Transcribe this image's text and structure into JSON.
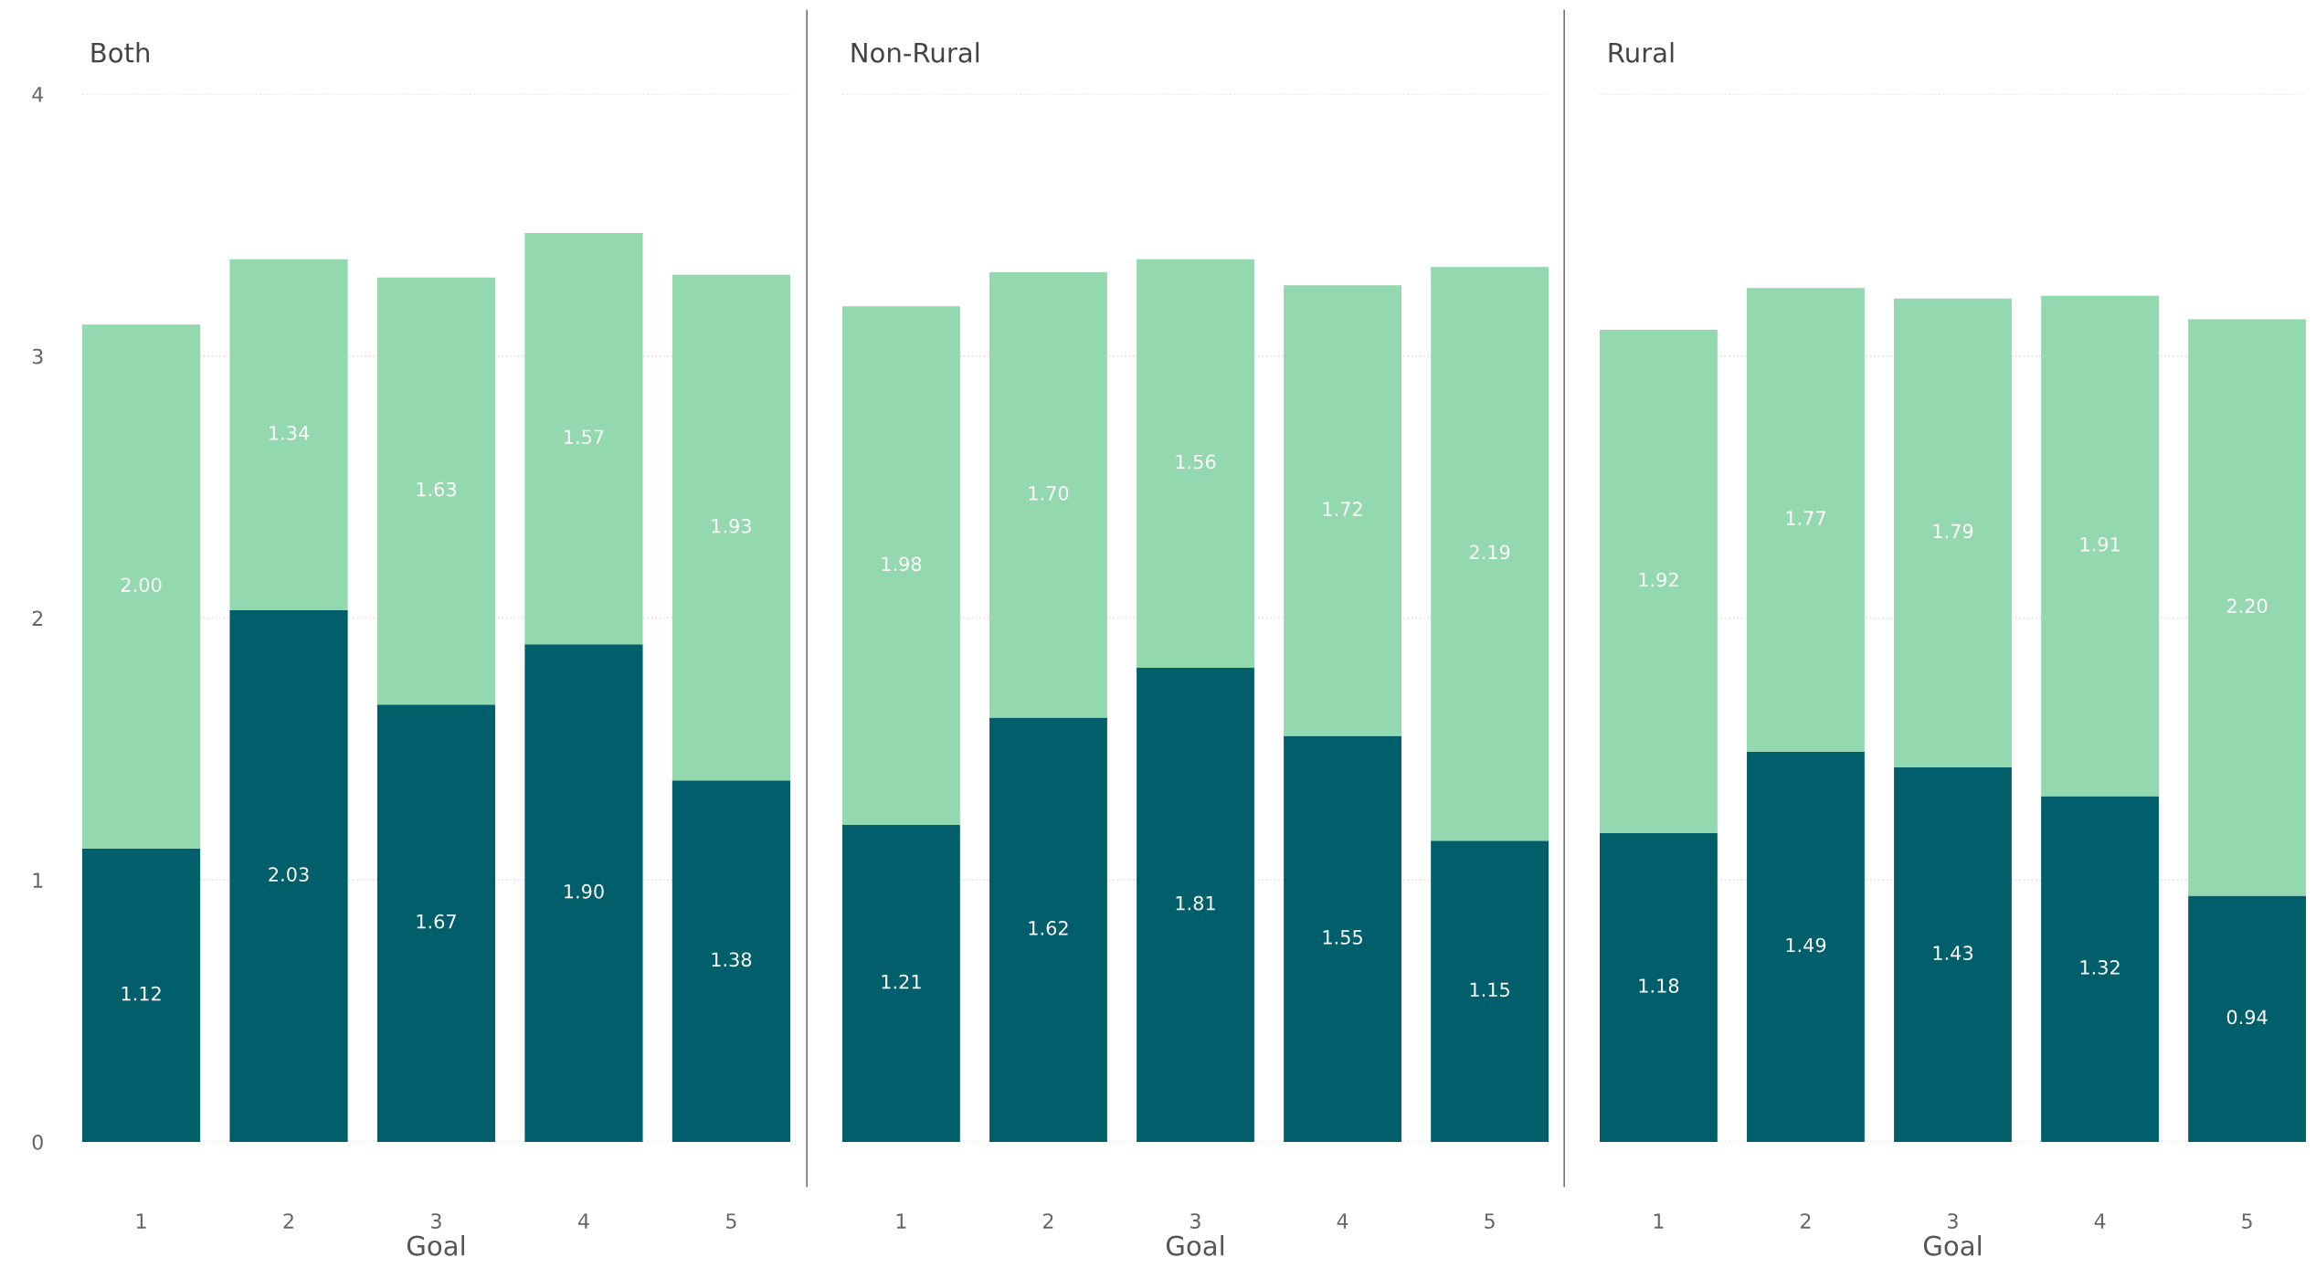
{
  "chart_data": [
    {
      "type": "bar",
      "title": "Both",
      "xlabel": "Goal",
      "categories": [
        "1",
        "2",
        "3",
        "4",
        "5"
      ],
      "stacked": true,
      "grid": "y",
      "ylim": [
        0,
        4
      ],
      "yticks": [
        0,
        1,
        2,
        3,
        4
      ],
      "series": [
        {
          "color": "#005f6b",
          "values": [
            1.12,
            2.03,
            1.67,
            1.9,
            1.38
          ],
          "value_labels": [
            "1.12",
            "2.03",
            "1.67",
            "1.90",
            "1.38"
          ]
        },
        {
          "color": "#93d8ae",
          "values": [
            2.0,
            1.34,
            1.63,
            1.57,
            1.93
          ],
          "value_labels": [
            "2.00",
            "1.34",
            "1.63",
            "1.57",
            "1.93"
          ]
        }
      ]
    },
    {
      "type": "bar",
      "title": "Non-Rural",
      "xlabel": "Goal",
      "categories": [
        "1",
        "2",
        "3",
        "4",
        "5"
      ],
      "stacked": true,
      "grid": "y",
      "ylim": [
        0,
        4
      ],
      "yticks": [
        0,
        1,
        2,
        3,
        4
      ],
      "tick_labels": "x",
      "series": [
        {
          "color": "#005f6b",
          "values": [
            1.21,
            1.62,
            1.81,
            1.55,
            1.15
          ],
          "value_labels": [
            "1.21",
            "1.62",
            "1.81",
            "1.55",
            "1.15"
          ]
        },
        {
          "color": "#93d8ae",
          "values": [
            1.98,
            1.7,
            1.56,
            1.72,
            2.19
          ],
          "value_labels": [
            "1.98",
            "1.70",
            "1.56",
            "1.72",
            "2.19"
          ]
        }
      ]
    },
    {
      "type": "bar",
      "title": "Rural",
      "xlabel": "Goal",
      "categories": [
        "1",
        "2",
        "3",
        "4",
        "5"
      ],
      "stacked": true,
      "grid": "y",
      "ylim": [
        0,
        4
      ],
      "yticks": [
        0,
        1,
        2,
        3,
        4
      ],
      "tick_labels": "x",
      "series": [
        {
          "color": "#005f6b",
          "values": [
            1.18,
            1.49,
            1.43,
            1.32,
            0.94
          ],
          "value_labels": [
            "1.18",
            "1.49",
            "1.43",
            "1.32",
            "0.94"
          ]
        },
        {
          "color": "#93d8ae",
          "values": [
            1.92,
            1.77,
            1.79,
            1.91,
            2.2
          ],
          "value_labels": [
            "1.92",
            "1.77",
            "1.79",
            "1.91",
            "2.20"
          ]
        }
      ]
    }
  ]
}
